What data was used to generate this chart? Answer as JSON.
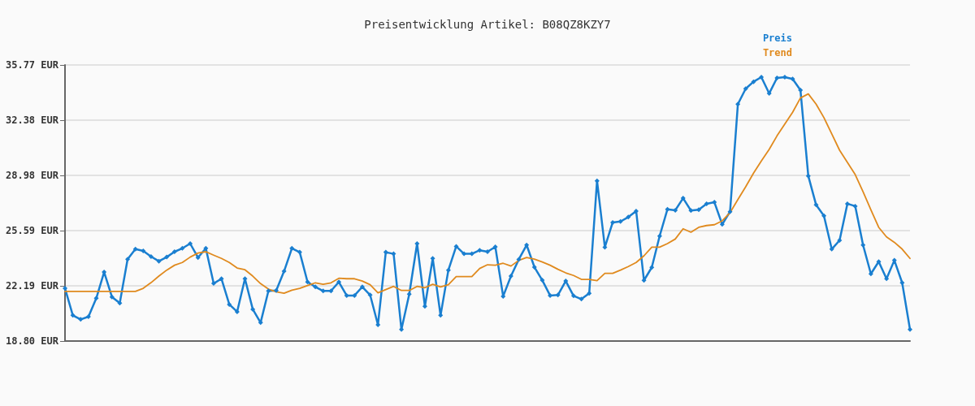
{
  "chart_data": {
    "type": "line",
    "title": "Preisentwicklung Artikel: B08QZ8KZY7",
    "categories": [
      null,
      null,
      null,
      null,
      null,
      null,
      null,
      null,
      null,
      null,
      null,
      null,
      null,
      null,
      null,
      null,
      null,
      null,
      null,
      null,
      null,
      null,
      null,
      null,
      null,
      null,
      null,
      null,
      null,
      null,
      null,
      null,
      null,
      null,
      null,
      null,
      null,
      null,
      null,
      null,
      null,
      null,
      null,
      null,
      null,
      null,
      null,
      null,
      null,
      null,
      null,
      null,
      null,
      null,
      null,
      null,
      null,
      null,
      null,
      null,
      null,
      null,
      null,
      null,
      null,
      null,
      null,
      null,
      null,
      null,
      null,
      null,
      null,
      null,
      null,
      null,
      null,
      null,
      null,
      null,
      null,
      null,
      null,
      null,
      null,
      null,
      null,
      null,
      null,
      null,
      null,
      null,
      null,
      null,
      null,
      null,
      null,
      null,
      null,
      null,
      null,
      null,
      null,
      null,
      null,
      null,
      null,
      null,
      null
    ],
    "series": [
      {
        "name": "Preis",
        "color": "#1a7fd0",
        "marker": "diamond",
        "values": [
          22.04,
          20.38,
          20.13,
          20.3,
          21.43,
          23.04,
          21.51,
          21.13,
          23.83,
          24.45,
          24.34,
          23.99,
          23.71,
          23.96,
          24.29,
          24.5,
          24.79,
          23.93,
          24.5,
          22.34,
          22.63,
          21.05,
          20.6,
          22.63,
          20.75,
          19.93,
          21.88,
          21.91,
          23.09,
          24.5,
          24.26,
          22.43,
          22.13,
          21.88,
          21.88,
          22.43,
          21.6,
          21.6,
          22.13,
          21.63,
          19.8,
          24.26,
          24.16,
          19.51,
          21.68,
          24.79,
          20.93,
          23.88,
          20.38,
          23.16,
          24.62,
          24.16,
          24.16,
          24.38,
          24.29,
          24.59,
          21.55,
          22.79,
          23.82,
          24.7,
          23.34,
          22.54,
          21.6,
          21.63,
          22.49,
          21.58,
          21.38,
          21.73,
          28.65,
          24.57,
          26.09,
          26.15,
          26.42,
          26.79,
          22.53,
          23.33,
          25.25,
          26.9,
          26.84,
          27.58,
          26.82,
          26.87,
          27.24,
          27.33,
          25.97,
          26.75,
          33.36,
          34.31,
          34.74,
          35.02,
          34.02,
          34.97,
          35.02,
          34.91,
          34.22,
          28.95,
          27.17,
          26.5,
          24.45,
          24.99,
          27.24,
          27.09,
          24.7,
          22.93,
          23.68,
          22.63,
          23.76,
          22.38,
          19.51
        ]
      },
      {
        "name": "Trend",
        "color": "#e08a1e",
        "marker": "none",
        "values": [
          21.85,
          21.85,
          21.85,
          21.85,
          21.85,
          21.85,
          21.85,
          21.85,
          21.85,
          21.85,
          22.04,
          22.39,
          22.79,
          23.16,
          23.46,
          23.63,
          23.96,
          24.21,
          24.29,
          24.08,
          23.88,
          23.63,
          23.29,
          23.18,
          22.79,
          22.33,
          21.99,
          21.83,
          21.74,
          21.93,
          22.04,
          22.21,
          22.38,
          22.29,
          22.38,
          22.66,
          22.63,
          22.63,
          22.49,
          22.26,
          21.76,
          21.96,
          22.16,
          21.91,
          21.91,
          22.16,
          22.08,
          22.29,
          22.13,
          22.26,
          22.76,
          22.76,
          22.76,
          23.26,
          23.49,
          23.46,
          23.58,
          23.41,
          23.76,
          23.93,
          23.83,
          23.66,
          23.46,
          23.21,
          22.99,
          22.83,
          22.59,
          22.59,
          22.51,
          22.96,
          22.96,
          23.16,
          23.38,
          23.63,
          24.04,
          24.57,
          24.57,
          24.79,
          25.07,
          25.7,
          25.49,
          25.79,
          25.9,
          25.95,
          26.19,
          26.69,
          27.5,
          28.28,
          29.12,
          29.87,
          30.58,
          31.41,
          32.14,
          32.86,
          33.74,
          33.99,
          33.36,
          32.53,
          31.53,
          30.53,
          29.78,
          29.03,
          27.98,
          26.87,
          25.79,
          25.2,
          24.87,
          24.45,
          23.88
        ]
      }
    ],
    "ylim": [
      18.8,
      35.77
    ],
    "yticks": [
      {
        "value": 18.8,
        "label": "18.80 EUR"
      },
      {
        "value": 22.19,
        "label": "22.19 EUR"
      },
      {
        "value": 25.59,
        "label": "25.59 EUR"
      },
      {
        "value": 28.98,
        "label": "28.98 EUR"
      },
      {
        "value": 32.38,
        "label": "32.38 EUR"
      },
      {
        "value": 35.77,
        "label": "35.77 EUR"
      }
    ],
    "grid": "y",
    "legend": "top right",
    "tick_labels": "y",
    "line_style": "solid"
  }
}
